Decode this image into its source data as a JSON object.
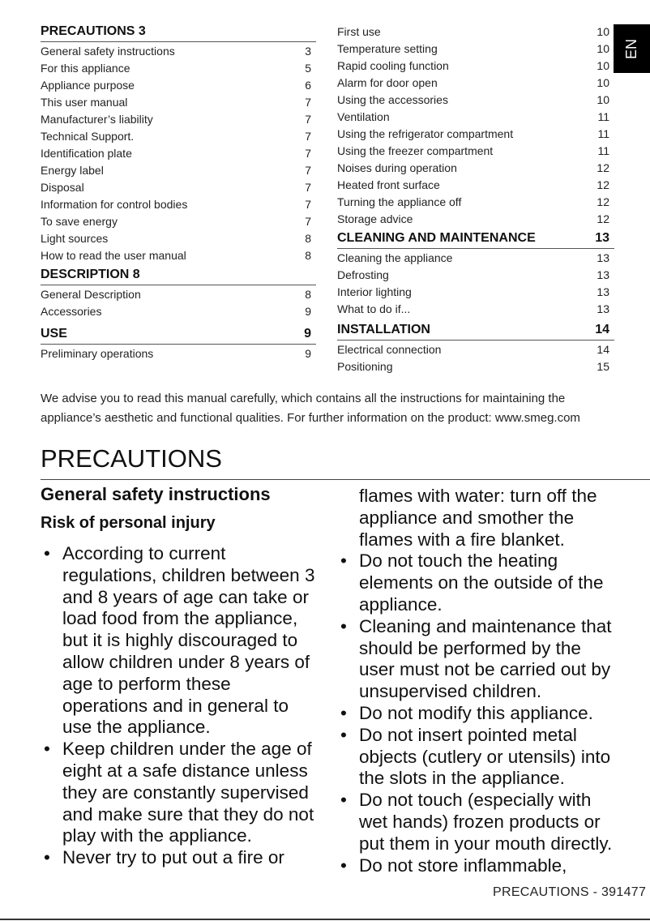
{
  "toc": {
    "left": [
      {
        "title": "PRECAUTIONS 3",
        "page": "",
        "items": [
          {
            "label": "General safety instructions",
            "page": "3"
          },
          {
            "label": "For this appliance",
            "page": "5"
          },
          {
            "label": "Appliance purpose",
            "page": "6"
          },
          {
            "label": "This user manual",
            "page": "7"
          },
          {
            "label": "Manufacturer’s liability",
            "page": "7"
          },
          {
            "label": "Technical Support.",
            "page": "7"
          },
          {
            "label": "Identification plate",
            "page": "7"
          },
          {
            "label": "Energy label",
            "page": "7"
          },
          {
            "label": "Disposal",
            "page": "7"
          },
          {
            "label": "Information for control bodies",
            "page": "7"
          },
          {
            "label": "To save energy",
            "page": "7"
          },
          {
            "label": "Light sources",
            "page": "8"
          },
          {
            "label": "How to read the user manual",
            "page": "8"
          }
        ]
      },
      {
        "title": "DESCRIPTION 8",
        "page": "",
        "items": [
          {
            "label": "General Description",
            "page": "8"
          },
          {
            "label": "Accessories",
            "page": "9"
          }
        ]
      },
      {
        "title": "USE",
        "page": "9",
        "items": [
          {
            "label": "Preliminary operations",
            "page": "9"
          }
        ]
      }
    ],
    "right": [
      {
        "title": null,
        "page": "",
        "items": [
          {
            "label": "First use",
            "page": "10"
          },
          {
            "label": "Temperature setting",
            "page": "10"
          },
          {
            "label": "Rapid cooling function",
            "page": "10"
          },
          {
            "label": "Alarm for door open",
            "page": "10"
          },
          {
            "label": "Using the accessories",
            "page": "10"
          },
          {
            "label": "Ventilation",
            "page": "11"
          },
          {
            "label": "Using the refrigerator compartment",
            "page": "11"
          },
          {
            "label": "Using the freezer compartment",
            "page": "11"
          },
          {
            "label": "Noises during operation",
            "page": "12"
          },
          {
            "label": "Heated front surface",
            "page": "12"
          },
          {
            "label": "Turning the appliance off",
            "page": "12"
          },
          {
            "label": "Storage advice",
            "page": "12"
          }
        ]
      },
      {
        "title": "CLEANING AND MAINTENANCE",
        "page": "13",
        "items": [
          {
            "label": "Cleaning the appliance",
            "page": "13"
          },
          {
            "label": "Defrosting",
            "page": "13"
          },
          {
            "label": "Interior lighting",
            "page": "13"
          },
          {
            "label": "What to do if...",
            "page": "13"
          }
        ]
      },
      {
        "title": "INSTALLATION",
        "page": "14",
        "items": [
          {
            "label": "Electrical connection",
            "page": "14"
          },
          {
            "label": "Positioning",
            "page": "15"
          }
        ]
      }
    ]
  },
  "language_tab": "EN",
  "intro": [
    "We advise you to read this manual carefully, which contains all the instructions for maintaining the",
    "appliance’s aesthetic and functional qualities. For further information on the product: www.smeg.com"
  ],
  "main_title": "PRECAUTIONS",
  "section_title": "General safety instructions",
  "subsection_title": "Risk of personal injury",
  "left_column": [
    {
      "bullet": true,
      "lines": [
        "According to current",
        "regulations, children between 3",
        "and 8 years of age can take or",
        "load food from the appliance,",
        "but it is highly discouraged to",
        "allow children under 8 years of",
        "age to perform these",
        "operations and in general to",
        "use the appliance."
      ]
    },
    {
      "bullet": true,
      "lines": [
        "Keep children under the age of",
        "eight at a safe distance unless",
        "they are constantly supervised",
        "and make sure that they do not",
        "play with the appliance."
      ]
    },
    {
      "bullet": true,
      "lines": [
        "Never try to put out a fire or"
      ]
    }
  ],
  "right_column": [
    {
      "bullet": false,
      "lines": [
        "flames with water: turn off the",
        "appliance and smother the",
        "flames with a fire blanket."
      ]
    },
    {
      "bullet": true,
      "lines": [
        "Do not touch the heating",
        "elements on the outside of the",
        "appliance."
      ]
    },
    {
      "bullet": true,
      "lines": [
        "Cleaning and maintenance that",
        "should be performed by the",
        "user must not be carried out by",
        "unsupervised children."
      ]
    },
    {
      "bullet": true,
      "lines": [
        "Do not modify this appliance."
      ]
    },
    {
      "bullet": true,
      "lines": [
        "Do not insert pointed metal",
        "objects (cutlery or utensils) into",
        "the slots in the appliance."
      ]
    },
    {
      "bullet": true,
      "lines": [
        "Do not touch (especially with",
        "wet hands) frozen products or",
        "put them in your mouth directly."
      ]
    },
    {
      "bullet": true,
      "lines": [
        "Do not store inflammable,"
      ]
    }
  ],
  "bullet_glyph": "•",
  "footer": "PRECAUTIONS  -  391477"
}
